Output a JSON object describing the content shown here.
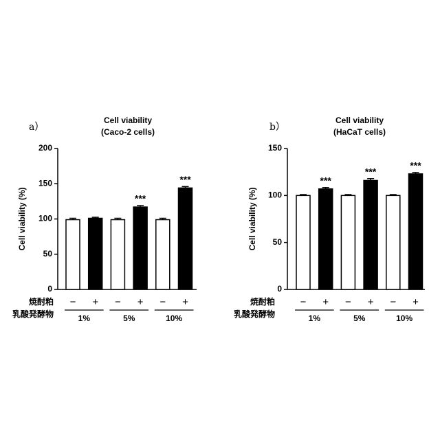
{
  "chart_data": [
    {
      "type": "bar",
      "panel": "a）",
      "title": "Cell viability",
      "subtitle": "(Caco-2 cells)",
      "y_label": "Cell viability (%)",
      "row_labels": [
        "焼酎粕",
        "乳酸発酵物"
      ],
      "categories": [
        "−",
        "+",
        "−",
        "+",
        "−",
        "+"
      ],
      "groups": [
        "1%",
        "5%",
        "10%"
      ],
      "values": [
        99,
        101,
        99,
        117,
        99,
        144
      ],
      "errors": [
        2,
        1.5,
        2,
        2,
        2,
        2
      ],
      "annotations": [
        null,
        null,
        null,
        "***",
        null,
        "***"
      ],
      "colors": [
        "#ffffff",
        "#000000",
        "#ffffff",
        "#000000",
        "#ffffff",
        "#000000"
      ],
      "ylim": [
        0,
        200
      ],
      "yticks": [
        0,
        50,
        100,
        150,
        200
      ]
    },
    {
      "type": "bar",
      "panel": "b）",
      "title": "Cell viability",
      "subtitle": "(HaCaT cells)",
      "y_label": "Cell viability (%)",
      "row_labels": [
        "焼酎粕",
        "乳酸発酵物"
      ],
      "categories": [
        "−",
        "+",
        "−",
        "+",
        "−",
        "+"
      ],
      "groups": [
        "1%",
        "5%",
        "10%"
      ],
      "values": [
        100,
        107,
        100,
        116,
        100,
        123
      ],
      "errors": [
        1,
        1.5,
        1,
        2,
        1,
        1.5
      ],
      "annotations": [
        null,
        "***",
        null,
        "***",
        null,
        "***"
      ],
      "colors": [
        "#ffffff",
        "#000000",
        "#ffffff",
        "#000000",
        "#ffffff",
        "#000000"
      ],
      "ylim": [
        0,
        150
      ],
      "yticks": [
        0,
        50,
        100,
        150
      ]
    }
  ]
}
